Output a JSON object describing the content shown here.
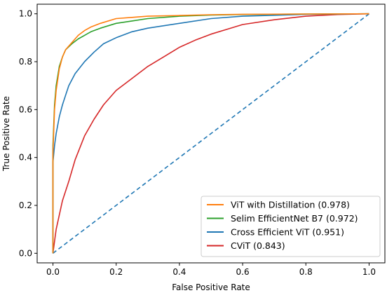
{
  "chart_data": {
    "type": "line",
    "xlabel": "False Positive Rate",
    "ylabel": "True Positive Rate",
    "xlim": [
      -0.05,
      1.05
    ],
    "ylim": [
      -0.04,
      1.04
    ],
    "x_ticks": [
      "0.0",
      "0.2",
      "0.4",
      "0.6",
      "0.8",
      "1.0"
    ],
    "y_ticks": [
      "0.0",
      "0.2",
      "0.4",
      "0.6",
      "0.8",
      "1.0"
    ],
    "grid": false,
    "legend_position": "bottom-right",
    "series": [
      {
        "name": "ViT with Distillation (0.978)",
        "color": "#ff7f0e",
        "points": [
          [
            0,
            0
          ],
          [
            0,
            0.42
          ],
          [
            0.005,
            0.6
          ],
          [
            0.01,
            0.68
          ],
          [
            0.02,
            0.77
          ],
          [
            0.03,
            0.82
          ],
          [
            0.04,
            0.85
          ],
          [
            0.06,
            0.88
          ],
          [
            0.08,
            0.91
          ],
          [
            0.1,
            0.93
          ],
          [
            0.12,
            0.945
          ],
          [
            0.15,
            0.96
          ],
          [
            0.2,
            0.98
          ],
          [
            0.25,
            0.985
          ],
          [
            0.3,
            0.99
          ],
          [
            0.4,
            0.993
          ],
          [
            0.5,
            0.996
          ],
          [
            0.6,
            0.998
          ],
          [
            0.8,
            0.999
          ],
          [
            1,
            1
          ]
        ]
      },
      {
        "name": "Selim EfficientNet B7 (0.972)",
        "color": "#2ca02c",
        "points": [
          [
            0,
            0
          ],
          [
            0,
            0.45
          ],
          [
            0.005,
            0.62
          ],
          [
            0.01,
            0.7
          ],
          [
            0.02,
            0.78
          ],
          [
            0.03,
            0.82
          ],
          [
            0.04,
            0.85
          ],
          [
            0.06,
            0.875
          ],
          [
            0.08,
            0.895
          ],
          [
            0.1,
            0.91
          ],
          [
            0.12,
            0.925
          ],
          [
            0.15,
            0.94
          ],
          [
            0.2,
            0.96
          ],
          [
            0.25,
            0.97
          ],
          [
            0.3,
            0.98
          ],
          [
            0.4,
            0.99
          ],
          [
            0.5,
            0.995
          ],
          [
            0.6,
            0.997
          ],
          [
            0.8,
            0.999
          ],
          [
            1,
            1
          ]
        ]
      },
      {
        "name": "Cross Efficient ViT (0.951)",
        "color": "#1f77b4",
        "points": [
          [
            0,
            0
          ],
          [
            0,
            0.38
          ],
          [
            0.005,
            0.45
          ],
          [
            0.01,
            0.5
          ],
          [
            0.02,
            0.57
          ],
          [
            0.03,
            0.62
          ],
          [
            0.04,
            0.66
          ],
          [
            0.05,
            0.7
          ],
          [
            0.07,
            0.75
          ],
          [
            0.1,
            0.8
          ],
          [
            0.13,
            0.84
          ],
          [
            0.16,
            0.875
          ],
          [
            0.2,
            0.9
          ],
          [
            0.25,
            0.925
          ],
          [
            0.3,
            0.94
          ],
          [
            0.4,
            0.96
          ],
          [
            0.5,
            0.98
          ],
          [
            0.6,
            0.99
          ],
          [
            0.8,
            0.998
          ],
          [
            1,
            1
          ]
        ]
      },
      {
        "name": "CViT (0.843)",
        "color": "#d62728",
        "points": [
          [
            0,
            0
          ],
          [
            0.01,
            0.1
          ],
          [
            0.02,
            0.16
          ],
          [
            0.03,
            0.22
          ],
          [
            0.05,
            0.3
          ],
          [
            0.07,
            0.39
          ],
          [
            0.1,
            0.49
          ],
          [
            0.13,
            0.56
          ],
          [
            0.16,
            0.62
          ],
          [
            0.2,
            0.68
          ],
          [
            0.25,
            0.73
          ],
          [
            0.3,
            0.78
          ],
          [
            0.35,
            0.82
          ],
          [
            0.4,
            0.86
          ],
          [
            0.45,
            0.89
          ],
          [
            0.5,
            0.915
          ],
          [
            0.55,
            0.935
          ],
          [
            0.6,
            0.955
          ],
          [
            0.7,
            0.975
          ],
          [
            0.8,
            0.99
          ],
          [
            0.9,
            0.997
          ],
          [
            1,
            1
          ]
        ]
      },
      {
        "name": "",
        "color": "#1f77b4",
        "dashed": true,
        "points": [
          [
            0,
            0
          ],
          [
            1,
            1
          ]
        ]
      }
    ]
  }
}
